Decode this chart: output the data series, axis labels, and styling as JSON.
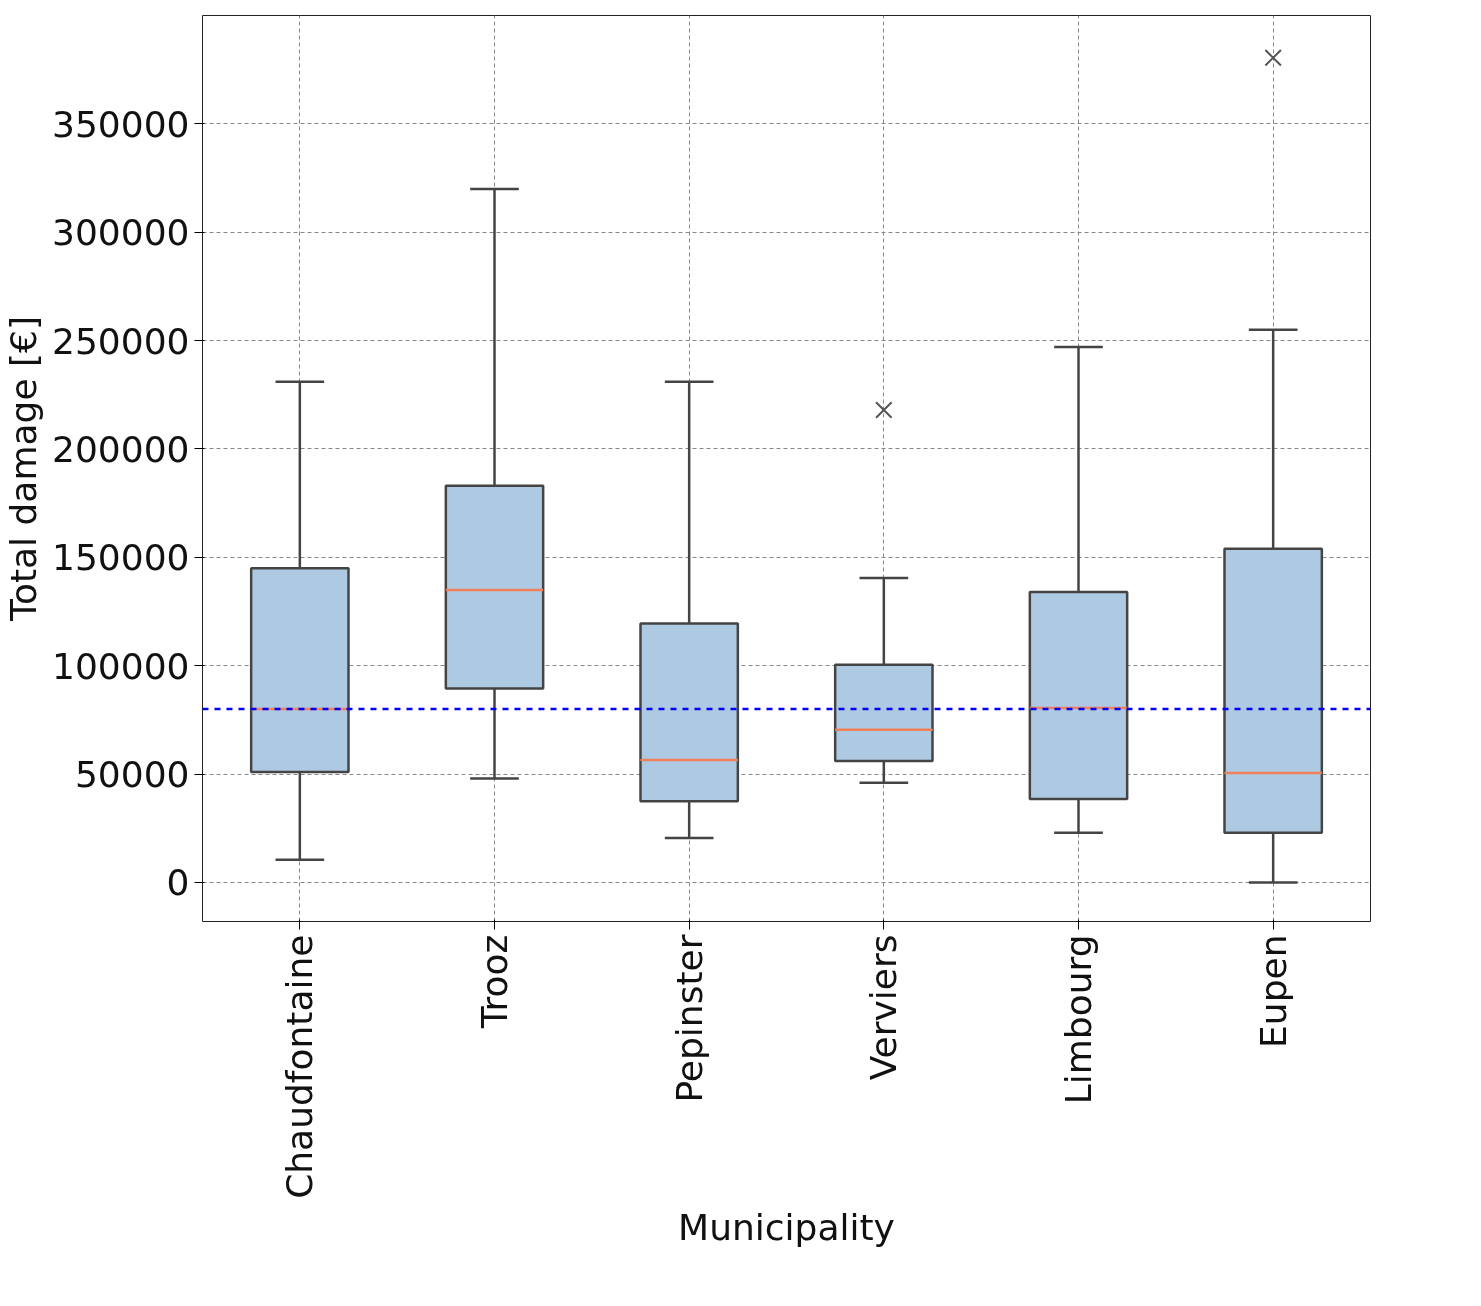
{
  "chart_data": {
    "type": "box",
    "xlabel": "Municipality",
    "ylabel": "Total damage [€]",
    "categories": [
      "Chaudfontaine",
      "Trooz",
      "Pepinster",
      "Verviers",
      "Limbourg",
      "Eupen"
    ],
    "boxes": [
      {
        "low": 10500,
        "q1": 51000,
        "median": 80000,
        "q3": 145000,
        "high": 231000
      },
      {
        "low": 48000,
        "q1": 89500,
        "median": 135000,
        "q3": 183000,
        "high": 320000
      },
      {
        "low": 20500,
        "q1": 37500,
        "median": 56500,
        "q3": 119500,
        "high": 231000
      },
      {
        "low": 46000,
        "q1": 56000,
        "median": 70500,
        "q3": 100500,
        "high": 140500,
        "outliers": [
          218000
        ]
      },
      {
        "low": 23000,
        "q1": 38500,
        "median": 80500,
        "q3": 134000,
        "high": 247000
      },
      {
        "low": 0,
        "q1": 23000,
        "median": 50500,
        "q3": 154000,
        "high": 255000,
        "outliers": [
          380500
        ]
      }
    ],
    "color": "#aecae3",
    "ylim": [
      -18000,
      400000
    ],
    "yticks": [
      0,
      50000,
      100000,
      150000,
      200000,
      250000,
      300000,
      350000
    ],
    "ref_lines": [
      {
        "axis": "y",
        "value": 80000,
        "color": "#0000ff",
        "line_style": "dashed"
      }
    ],
    "grid": true,
    "marker": "cross"
  }
}
